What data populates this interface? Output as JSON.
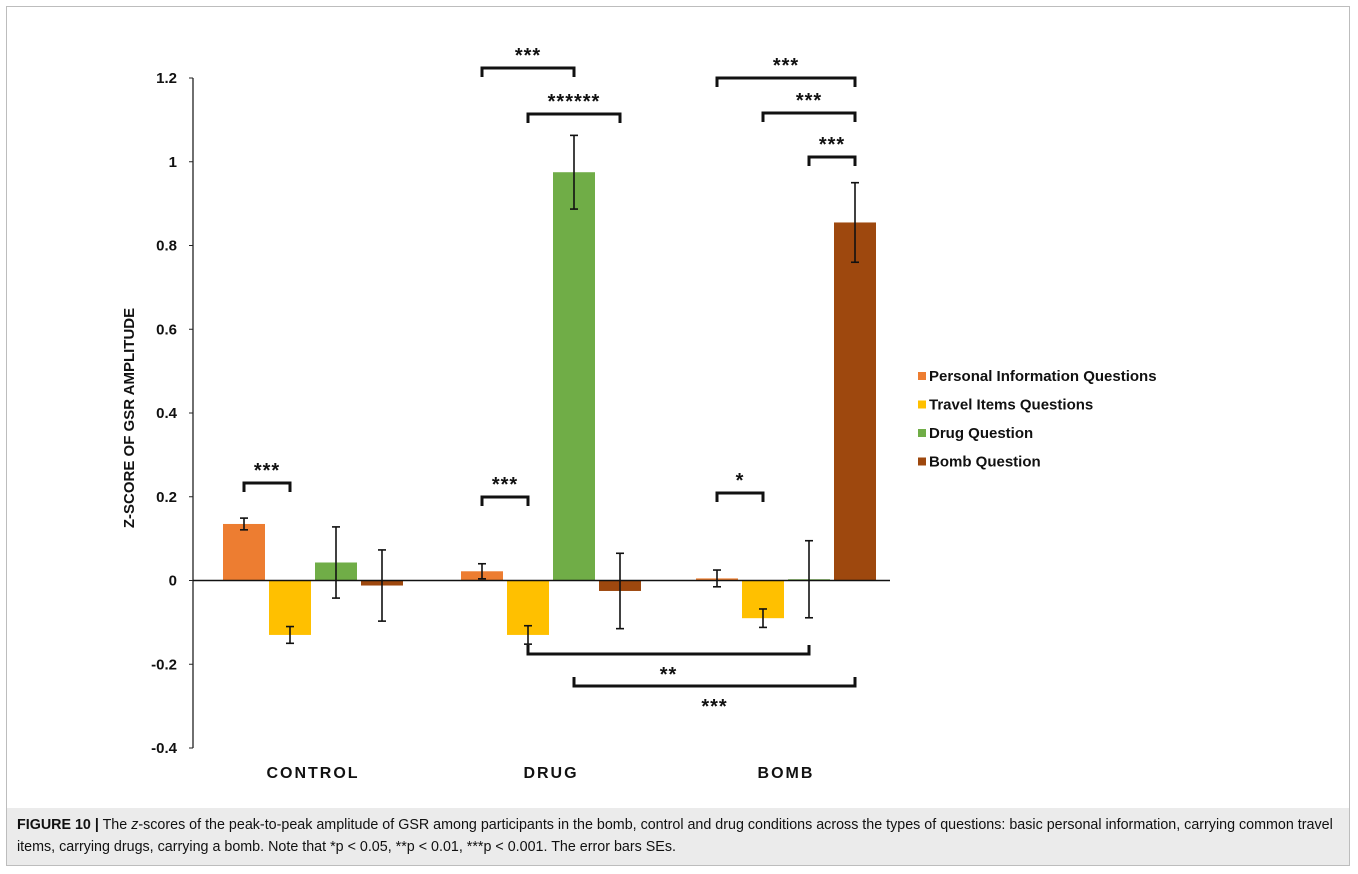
{
  "chart_data": {
    "type": "bar",
    "categories": [
      "CONTROL",
      "DRUG",
      "BOMB"
    ],
    "ylabel": "Z-SCORE OF GSR AMPLITUDE",
    "ylim": [
      -0.4,
      1.2
    ],
    "yticks": [
      "1.2",
      "1",
      "0.8",
      "0.6",
      "0.4",
      "0.2",
      "0",
      "-0.2",
      "-0.4"
    ],
    "ytick_values": [
      1.2,
      1,
      0.8,
      0.6,
      0.4,
      0.2,
      0,
      -0.2,
      -0.4
    ],
    "grid": false,
    "legend_position": "right",
    "series": [
      {
        "name": "Personal Information Questions",
        "color": "#ed7d31",
        "values": [
          0.135,
          0.022,
          0.005
        ],
        "errors": [
          0.014,
          0.018,
          0.02
        ]
      },
      {
        "name": "Travel Items Questions",
        "color": "#ffc000",
        "values": [
          -0.13,
          -0.13,
          -0.09
        ],
        "errors": [
          0.02,
          0.022,
          0.022
        ]
      },
      {
        "name": "Drug Question",
        "color": "#70ad47",
        "values": [
          0.043,
          0.975,
          0.003
        ],
        "errors": [
          0.085,
          0.088,
          0.092
        ]
      },
      {
        "name": "Bomb Question",
        "color": "#9e480e",
        "values": [
          -0.012,
          -0.025,
          0.855
        ],
        "errors": [
          0.085,
          0.09,
          0.095
        ]
      }
    ],
    "annotations": [
      {
        "label": "***",
        "from": [
          0,
          0
        ],
        "to": [
          0,
          1
        ],
        "position": "above"
      },
      {
        "label": "***",
        "from": [
          1,
          0
        ],
        "to": [
          1,
          1
        ],
        "position": "above"
      },
      {
        "label": "***",
        "from": [
          1,
          0
        ],
        "to": [
          1,
          2
        ],
        "position": "above"
      },
      {
        "label": "******",
        "from": [
          1,
          1
        ],
        "to": [
          1,
          3
        ],
        "position": "above"
      },
      {
        "label": "*",
        "from": [
          2,
          0
        ],
        "to": [
          2,
          1
        ],
        "position": "above"
      },
      {
        "label": "***",
        "from": [
          2,
          0
        ],
        "to": [
          2,
          3
        ],
        "position": "above"
      },
      {
        "label": "***",
        "from": [
          2,
          1
        ],
        "to": [
          2,
          3
        ],
        "position": "above"
      },
      {
        "label": "***",
        "from": [
          2,
          2
        ],
        "to": [
          2,
          3
        ],
        "position": "above"
      },
      {
        "label": "**",
        "from": [
          1,
          1
        ],
        "to": [
          2,
          2
        ],
        "position": "below"
      },
      {
        "label": "***",
        "from": [
          1,
          2
        ],
        "to": [
          2,
          3
        ],
        "position": "below"
      }
    ]
  },
  "caption": {
    "label": "FIGURE 10 |",
    "part1": " The ",
    "z": "z",
    "part2": "-scores of the peak-to-peak amplitude of GSR among participants in the bomb, control and drug conditions across the types of questions: basic personal information, carrying common travel items, carrying drugs, carrying a bomb. Note that ",
    "note": "*p < 0.05, **p < 0.01, ***p < 0.001. The error bars SEs."
  }
}
